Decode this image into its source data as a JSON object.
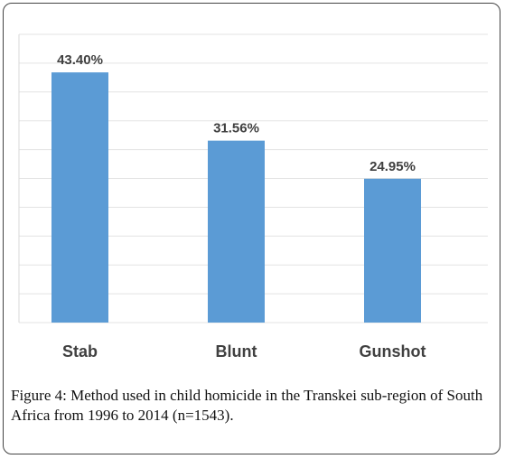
{
  "chart_data": {
    "type": "bar",
    "categories": [
      "Stab",
      "Blunt",
      "Gunshot"
    ],
    "values": [
      43.4,
      31.56,
      24.95
    ],
    "data_labels": [
      "43.40%",
      "31.56%",
      "24.95%"
    ],
    "title": "",
    "xlabel": "",
    "ylabel": "",
    "ylim": [
      0,
      50
    ],
    "grid": true,
    "bar_color": "#5b9bd5"
  },
  "caption": {
    "label": "Figure 4:",
    "text": " Method used in child homicide in the Transkei sub-region of South Africa from 1996 to 2014 (n=1543)."
  }
}
